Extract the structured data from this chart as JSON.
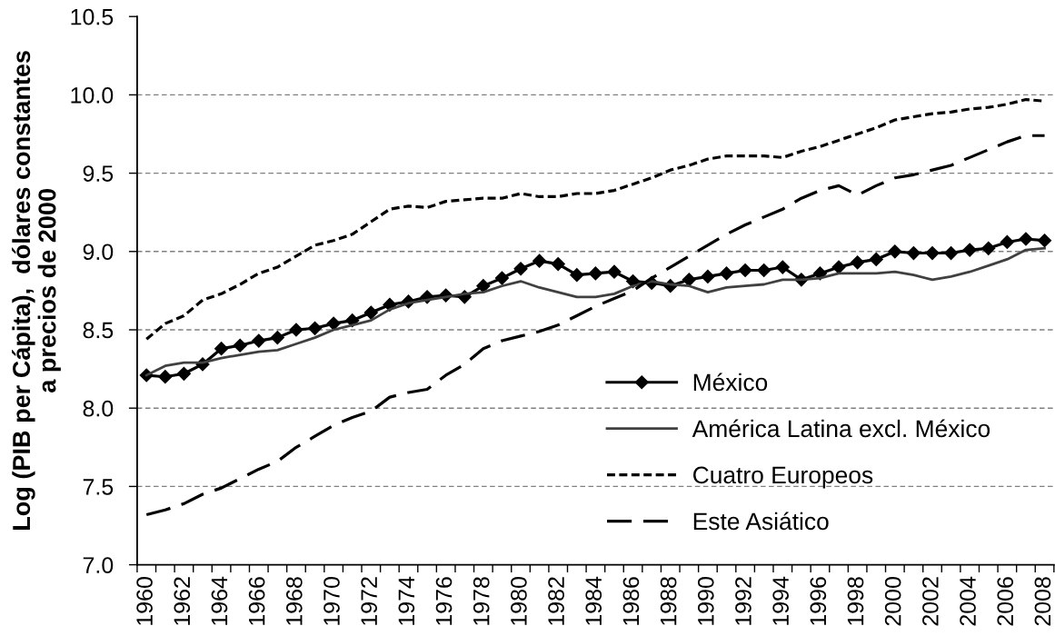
{
  "chart_data": {
    "type": "line",
    "ylabel": "Log (PIB per Cápita),  dólares constantes\na precios de 2000",
    "categories": [
      "1960",
      null,
      "1962",
      null,
      "1964",
      null,
      "1966",
      null,
      "1968",
      null,
      "1970",
      null,
      "1972",
      null,
      "1974",
      null,
      "1976",
      null,
      "1978",
      null,
      "1980",
      null,
      "1982",
      null,
      "1984",
      null,
      "1986",
      null,
      "1988",
      null,
      "1990",
      null,
      "1992",
      null,
      "1994",
      null,
      "1996",
      null,
      "1998",
      null,
      "2000",
      null,
      "2002",
      null,
      "2004",
      null,
      "2006",
      null,
      "2008"
    ],
    "ylim": [
      7.0,
      10.5
    ],
    "yticks": [
      {
        "value": 7.0,
        "label": "7.0"
      },
      {
        "value": 7.5,
        "label": "7.5"
      },
      {
        "value": 8.0,
        "label": "8.0"
      },
      {
        "value": 8.5,
        "label": "8.5"
      },
      {
        "value": 9.0,
        "label": "9.0"
      },
      {
        "value": 9.5,
        "label": "9.5"
      },
      {
        "value": 10.0,
        "label": "10.0"
      },
      {
        "value": 10.5,
        "label": "10.5"
      }
    ],
    "grid": "y",
    "legend": "bottom right",
    "series": [
      {
        "name": "México",
        "color": "#000000",
        "marker": "diamond",
        "line_style": "solid",
        "values": [
          8.21,
          8.2,
          8.22,
          8.28,
          8.38,
          8.4,
          8.43,
          8.45,
          8.5,
          8.51,
          8.54,
          8.56,
          8.61,
          8.66,
          8.68,
          8.71,
          8.72,
          8.71,
          8.78,
          8.83,
          8.89,
          8.94,
          8.92,
          8.85,
          8.86,
          8.87,
          8.81,
          8.8,
          8.78,
          8.82,
          8.84,
          8.86,
          8.88,
          8.88,
          8.9,
          8.82,
          8.86,
          8.9,
          8.93,
          8.95,
          9.0,
          8.99,
          8.99,
          8.99,
          9.01,
          9.02,
          9.06,
          9.08,
          9.07
        ]
      },
      {
        "name": "América Latina excl. México",
        "color": "#404040",
        "marker": "none",
        "line_style": "solid",
        "values": [
          8.21,
          8.27,
          8.29,
          8.29,
          8.32,
          8.34,
          8.36,
          8.37,
          8.41,
          8.45,
          8.5,
          8.53,
          8.56,
          8.63,
          8.67,
          8.69,
          8.71,
          8.73,
          8.74,
          8.78,
          8.81,
          8.77,
          8.74,
          8.71,
          8.71,
          8.73,
          8.78,
          8.81,
          8.79,
          8.78,
          8.74,
          8.77,
          8.78,
          8.79,
          8.82,
          8.82,
          8.83,
          8.86,
          8.86,
          8.86,
          8.87,
          8.85,
          8.82,
          8.84,
          8.87,
          8.91,
          8.95,
          9.01,
          9.02
        ]
      },
      {
        "name": "Cuatro Europeos",
        "color": "#000000",
        "marker": "none",
        "line_style": "dotted",
        "values": [
          8.44,
          8.54,
          8.59,
          8.69,
          8.73,
          8.79,
          8.86,
          8.9,
          8.97,
          9.04,
          9.07,
          9.11,
          9.19,
          9.27,
          9.29,
          9.28,
          9.32,
          9.33,
          9.34,
          9.34,
          9.37,
          9.35,
          9.35,
          9.37,
          9.37,
          9.39,
          9.43,
          9.47,
          9.52,
          9.55,
          9.59,
          9.61,
          9.61,
          9.61,
          9.6,
          9.64,
          9.67,
          9.71,
          9.75,
          9.79,
          9.84,
          9.86,
          9.88,
          9.89,
          9.91,
          9.92,
          9.94,
          9.97,
          9.96
        ]
      },
      {
        "name": "Este Asiático",
        "color": "#000000",
        "marker": "none",
        "line_style": "dashed",
        "values": [
          7.32,
          7.35,
          7.39,
          7.45,
          7.49,
          7.55,
          7.61,
          7.66,
          7.75,
          7.82,
          7.89,
          7.94,
          7.98,
          8.07,
          8.1,
          8.12,
          8.21,
          8.28,
          8.38,
          8.43,
          8.46,
          8.49,
          8.53,
          8.59,
          8.65,
          8.7,
          8.75,
          8.83,
          8.9,
          8.97,
          9.04,
          9.11,
          9.17,
          9.22,
          9.27,
          9.34,
          9.39,
          9.42,
          9.36,
          9.42,
          9.47,
          9.49,
          9.52,
          9.55,
          9.6,
          9.65,
          9.7,
          9.74,
          9.74
        ]
      }
    ]
  }
}
